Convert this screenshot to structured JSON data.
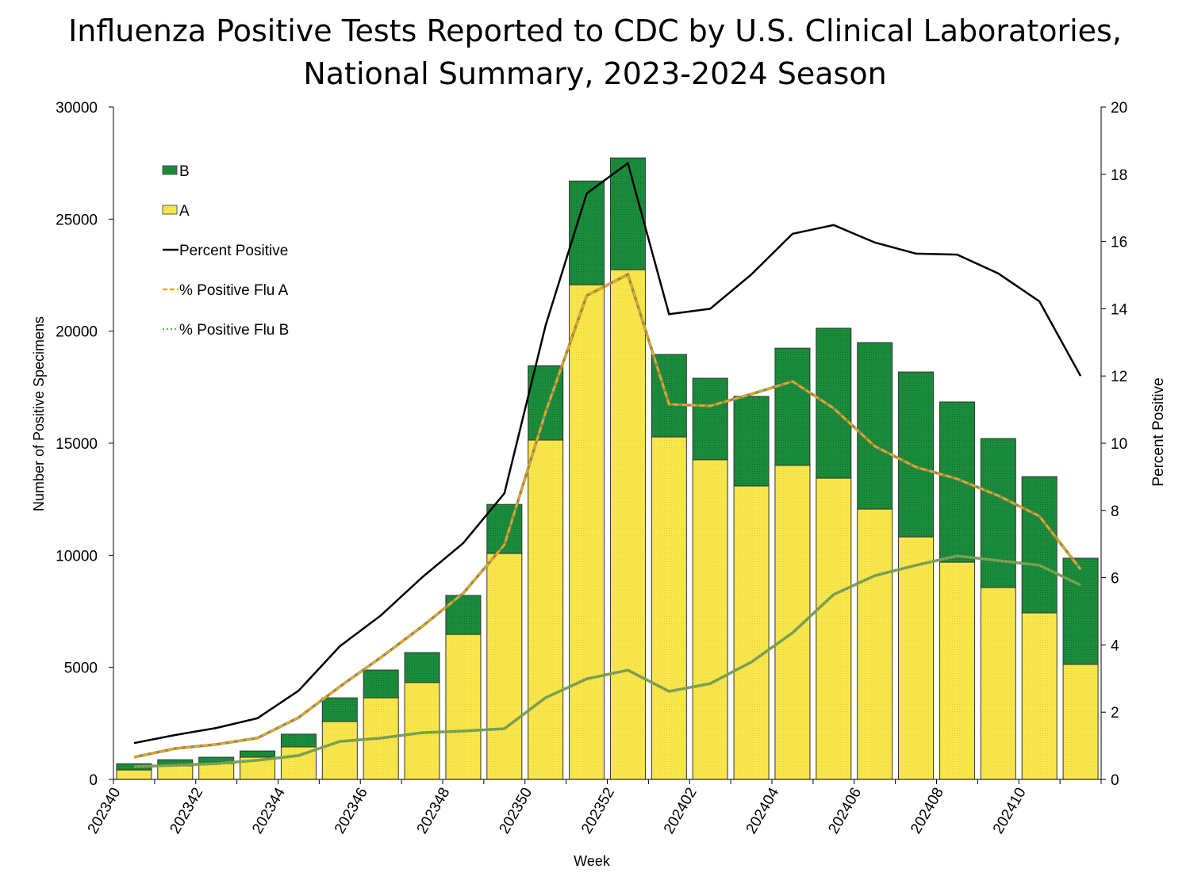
{
  "chart_data": {
    "type": "bar",
    "title_lines": [
      "Influenza Positive Tests Reported to CDC by U.S. Clinical Laboratories,",
      "National Summary, 2023-2024 Season"
    ],
    "xlabel": "Week",
    "ylabel": "Number of Positive Specimens",
    "y2label": "Percent Positive",
    "ylim": [
      0,
      30000
    ],
    "y2lim": [
      0,
      20
    ],
    "yticks": [
      0,
      5000,
      10000,
      15000,
      20000,
      25000,
      30000
    ],
    "y2ticks": [
      0,
      2,
      4,
      6,
      8,
      10,
      12,
      14,
      16,
      18,
      20
    ],
    "grid": false,
    "legend_position": "top-left",
    "stacked": true,
    "categories": [
      "202340",
      "202341",
      "202342",
      "202343",
      "202344",
      "202345",
      "202346",
      "202347",
      "202348",
      "202349",
      "202350",
      "202351",
      "202352",
      "202401",
      "202402",
      "202403",
      "202404",
      "202405",
      "202406",
      "202407",
      "202408",
      "202409",
      "202410",
      "202411"
    ],
    "tick_labels": [
      "202340",
      "",
      "202342",
      "",
      "202344",
      "",
      "202346",
      "",
      "202348",
      "",
      "202350",
      "",
      "202352",
      "",
      "202402",
      "",
      "202404",
      "",
      "202406",
      "",
      "202408",
      "",
      "202410",
      ""
    ],
    "series": [
      {
        "name": "A",
        "kind": "bar",
        "axis": "left",
        "color": "#f5e642",
        "values": [
          420,
          600,
          700,
          990,
          1450,
          2580,
          3640,
          4320,
          6470,
          10080,
          15140,
          22070,
          22740,
          15280,
          14260,
          13090,
          14010,
          13440,
          12060,
          10820,
          9690,
          8560,
          7430,
          5130
        ]
      },
      {
        "name": "B",
        "kind": "bar",
        "axis": "left",
        "color": "#1a8a3a",
        "values": [
          280,
          280,
          290,
          280,
          570,
          1060,
          1240,
          1340,
          1740,
          2190,
          3320,
          4630,
          4990,
          3680,
          3640,
          4000,
          5230,
          6690,
          7430,
          7360,
          7150,
          6650,
          6080,
          4740
        ]
      },
      {
        "name": "Percent Positive",
        "kind": "line",
        "axis": "right",
        "color": "#000000",
        "style": "solid",
        "values": [
          1.08,
          1.32,
          1.53,
          1.82,
          2.64,
          3.96,
          4.88,
          6.01,
          7.03,
          8.51,
          13.5,
          17.43,
          18.33,
          13.84,
          14.0,
          15.02,
          16.23,
          16.49,
          15.97,
          15.64,
          15.61,
          15.05,
          14.22,
          12.0
        ]
      },
      {
        "name": "% Positive Flu A",
        "kind": "line",
        "axis": "right",
        "color": "#f5a800",
        "style": "dashed",
        "values": [
          0.66,
          0.92,
          1.04,
          1.23,
          1.84,
          2.76,
          3.63,
          4.55,
          5.54,
          6.98,
          10.92,
          14.39,
          15.02,
          11.16,
          11.11,
          11.46,
          11.84,
          11.04,
          9.91,
          9.29,
          8.94,
          8.44,
          7.83,
          6.25
        ]
      },
      {
        "name": "% Positive Flu B",
        "kind": "line",
        "axis": "right",
        "color": "#55cc22",
        "style": "dotted",
        "values": [
          0.38,
          0.42,
          0.47,
          0.57,
          0.71,
          1.13,
          1.23,
          1.39,
          1.44,
          1.51,
          2.43,
          2.99,
          3.25,
          2.62,
          2.85,
          3.49,
          4.36,
          5.5,
          6.06,
          6.37,
          6.65,
          6.51,
          6.37,
          5.78
        ]
      }
    ]
  }
}
